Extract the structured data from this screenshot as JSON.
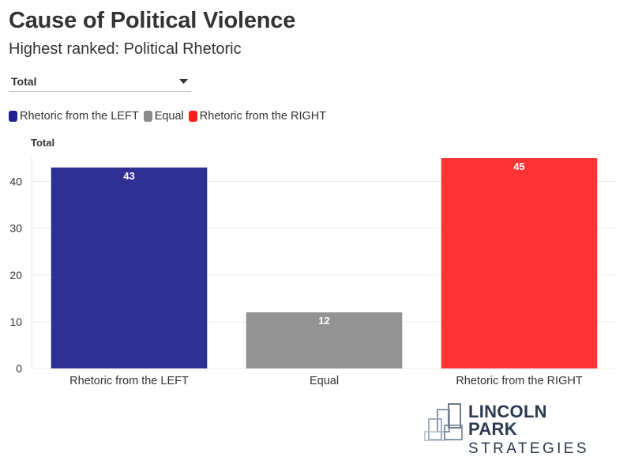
{
  "title": "Cause of Political Violence",
  "subtitle": "Highest ranked: Political Rhetoric",
  "dropdown": {
    "selected": "Total"
  },
  "legend": [
    {
      "label": "Rhetoric from the LEFT",
      "color": "#1f1f8f"
    },
    {
      "label": "Equal",
      "color": "#8a8a8a"
    },
    {
      "label": "Rhetoric from the RIGHT",
      "color": "#ff1a1a"
    }
  ],
  "chart_label": "Total",
  "logo": {
    "line1": "LINCOLN PARK",
    "line2": "STRATEGIES"
  },
  "chart_data": {
    "type": "bar",
    "title": "Total",
    "categories": [
      "Rhetoric from the LEFT",
      "Equal",
      "Rhetoric from the RIGHT"
    ],
    "values": [
      43,
      12,
      45
    ],
    "colors": [
      "#2f2f94",
      "#939393",
      "#ff3333"
    ],
    "ylim": [
      0,
      45
    ],
    "yticks": [
      0,
      10,
      20,
      30,
      40
    ],
    "xlabel": "",
    "ylabel": "",
    "grid": true
  }
}
